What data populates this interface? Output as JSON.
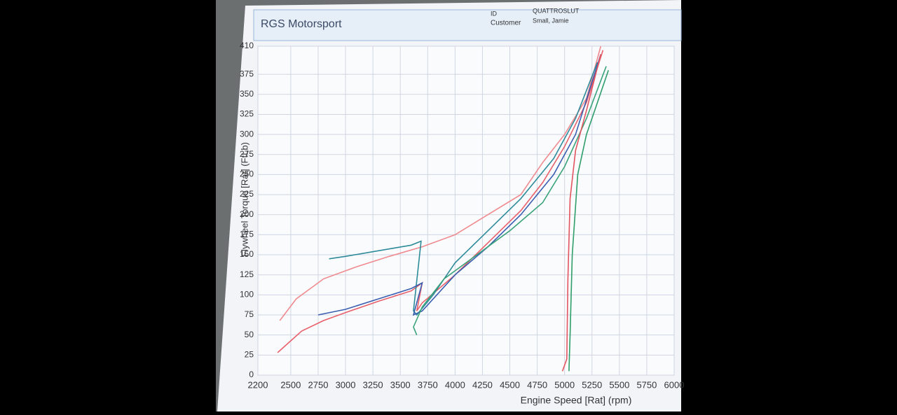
{
  "header": {
    "title": "RGS Motorsport",
    "id_label": "ID",
    "id_value": "QUATTROSLUT",
    "customer_label": "Customer",
    "customer_value": "Small, Jamie"
  },
  "chart_data": {
    "type": "line",
    "x_label": "Engine Speed [Rat] (rpm)",
    "y_label": "Flywheel Torque [Rat] (FtLb)",
    "xlim": [
      2200,
      6000
    ],
    "xticks": [
      2200,
      2500,
      2750,
      3000,
      3250,
      3500,
      3750,
      4000,
      4250,
      4500,
      4750,
      5000,
      5250,
      5500,
      5750,
      6000
    ],
    "ylim": [
      0,
      410
    ],
    "yticks": [
      0,
      25,
      50,
      75,
      100,
      125,
      150,
      175,
      200,
      225,
      250,
      275,
      300,
      325,
      350,
      375,
      410
    ],
    "grid": true,
    "series": [
      {
        "color": "#e8606a",
        "x": [
          2380,
          2600,
          2800,
          3000,
          3300,
          3600,
          3700,
          3650,
          3700,
          4000,
          4300,
          4600,
          4800,
          5000,
          5200,
          5350
        ],
        "values": [
          28,
          55,
          68,
          78,
          92,
          105,
          115,
          80,
          90,
          125,
          165,
          205,
          240,
          285,
          340,
          405
        ]
      },
      {
        "color": "#ef8a8f",
        "x": [
          2400,
          2550,
          2800,
          3100,
          3400,
          3700,
          4000,
          4300,
          4600,
          4800,
          5000,
          5200,
          5330
        ],
        "values": [
          68,
          95,
          120,
          135,
          148,
          160,
          175,
          200,
          225,
          265,
          300,
          345,
          410
        ]
      },
      {
        "color": "#2e8b9a",
        "x": [
          2850,
          3000,
          3300,
          3600,
          3690,
          3620,
          3650,
          3800,
          4000,
          4300,
          4600,
          4900,
          5100,
          5300
        ],
        "values": [
          145,
          148,
          155,
          162,
          167,
          80,
          75,
          100,
          140,
          180,
          220,
          270,
          320,
          390
        ]
      },
      {
        "color": "#3a5fb0",
        "x": [
          2750,
          3000,
          3300,
          3600,
          3700,
          3620,
          3700,
          4000,
          4300,
          4600,
          4900,
          5100,
          5330
        ],
        "values": [
          75,
          82,
          95,
          108,
          115,
          75,
          80,
          125,
          160,
          200,
          250,
          300,
          400
        ]
      },
      {
        "color": "#3aa37a",
        "x": [
          3650,
          3620,
          3700,
          3900,
          4200,
          4500,
          4800,
          5000,
          5200,
          5380
        ],
        "values": [
          50,
          60,
          85,
          120,
          150,
          180,
          215,
          260,
          320,
          385
        ]
      },
      {
        "color": "#2f9e6a",
        "x": [
          5040,
          5050,
          5070,
          5120,
          5200,
          5300,
          5400
        ],
        "values": [
          5,
          50,
          150,
          250,
          300,
          340,
          380
        ]
      },
      {
        "color": "#e25560",
        "x": [
          4980,
          5020,
          5030,
          5050,
          5100,
          5200,
          5330
        ],
        "values": [
          5,
          20,
          120,
          220,
          280,
          330,
          400
        ]
      }
    ]
  }
}
